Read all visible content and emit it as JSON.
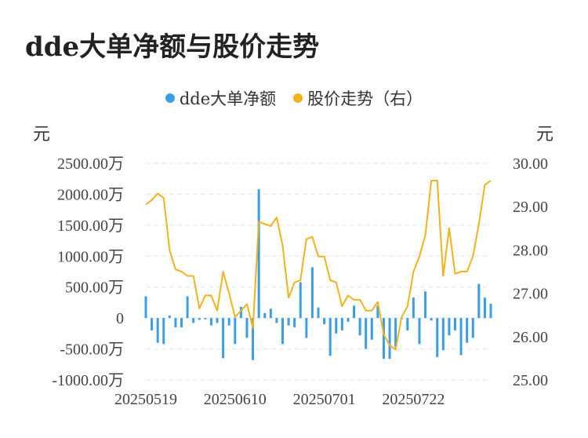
{
  "title": "dde大单净额与股价走势",
  "legend": {
    "dde": "dde大单净额",
    "price": "股价走势（右）"
  },
  "colors": {
    "bar": "#3a9ee6",
    "line": "#f2b21c",
    "grid": "#e6e6e6",
    "text": "#444444"
  },
  "chart_data": {
    "type": "bar+line",
    "left_axis": {
      "unit": "元",
      "ylim": [
        -1000,
        2500
      ],
      "ticks": [
        2500,
        2000,
        1500,
        1000,
        500,
        0,
        -500,
        -1000
      ],
      "tick_labels": [
        "2500.00万",
        "2000.00万",
        "1500.00万",
        "1000.00万",
        "500.00万",
        "0",
        "-500.00万",
        "-1000.00万"
      ]
    },
    "right_axis": {
      "unit": "元",
      "ylim": [
        25,
        30
      ],
      "ticks": [
        30,
        29,
        28,
        27,
        26,
        25
      ],
      "tick_labels": [
        "30.00",
        "29.00",
        "28.00",
        "27.00",
        "26.00",
        "25.00"
      ]
    },
    "x_tick_labels": [
      {
        "index": 0,
        "label": "20250519"
      },
      {
        "index": 15,
        "label": "20250610"
      },
      {
        "index": 30,
        "label": "20250701"
      },
      {
        "index": 45,
        "label": "20250722"
      }
    ],
    "series": [
      {
        "name": "dde大单净额",
        "axis": "left",
        "values": [
          350,
          -200,
          -400,
          -420,
          40,
          -150,
          -150,
          350,
          -80,
          -30,
          -20,
          -120,
          -80,
          -650,
          -120,
          -420,
          180,
          -320,
          -680,
          2080,
          80,
          150,
          -80,
          -420,
          -120,
          -150,
          580,
          -320,
          820,
          170,
          -100,
          -610,
          -250,
          -200,
          -60,
          200,
          -280,
          -500,
          -350,
          200,
          -660,
          -660,
          -470,
          -20,
          -200,
          330,
          -420,
          430,
          -40,
          -630,
          -520,
          -280,
          -200,
          -600,
          -400,
          -320,
          550,
          330,
          230
        ]
      },
      {
        "name": "股价走势（右）",
        "axis": "right",
        "values": [
          29.05,
          29.15,
          29.3,
          29.2,
          28.0,
          27.55,
          27.5,
          27.4,
          27.4,
          26.65,
          26.95,
          26.95,
          26.6,
          27.5,
          27.0,
          26.45,
          26.6,
          26.75,
          26.2,
          28.65,
          28.6,
          28.55,
          28.75,
          28.1,
          26.9,
          27.25,
          27.3,
          28.25,
          28.3,
          27.85,
          27.85,
          27.3,
          27.25,
          26.7,
          26.95,
          26.85,
          26.85,
          26.6,
          26.6,
          26.8,
          26.05,
          25.8,
          25.7,
          26.45,
          26.7,
          27.5,
          27.85,
          28.35,
          29.6,
          29.6,
          27.4,
          28.5,
          27.45,
          27.5,
          27.5,
          27.85,
          28.6,
          29.5,
          29.6
        ]
      }
    ]
  }
}
